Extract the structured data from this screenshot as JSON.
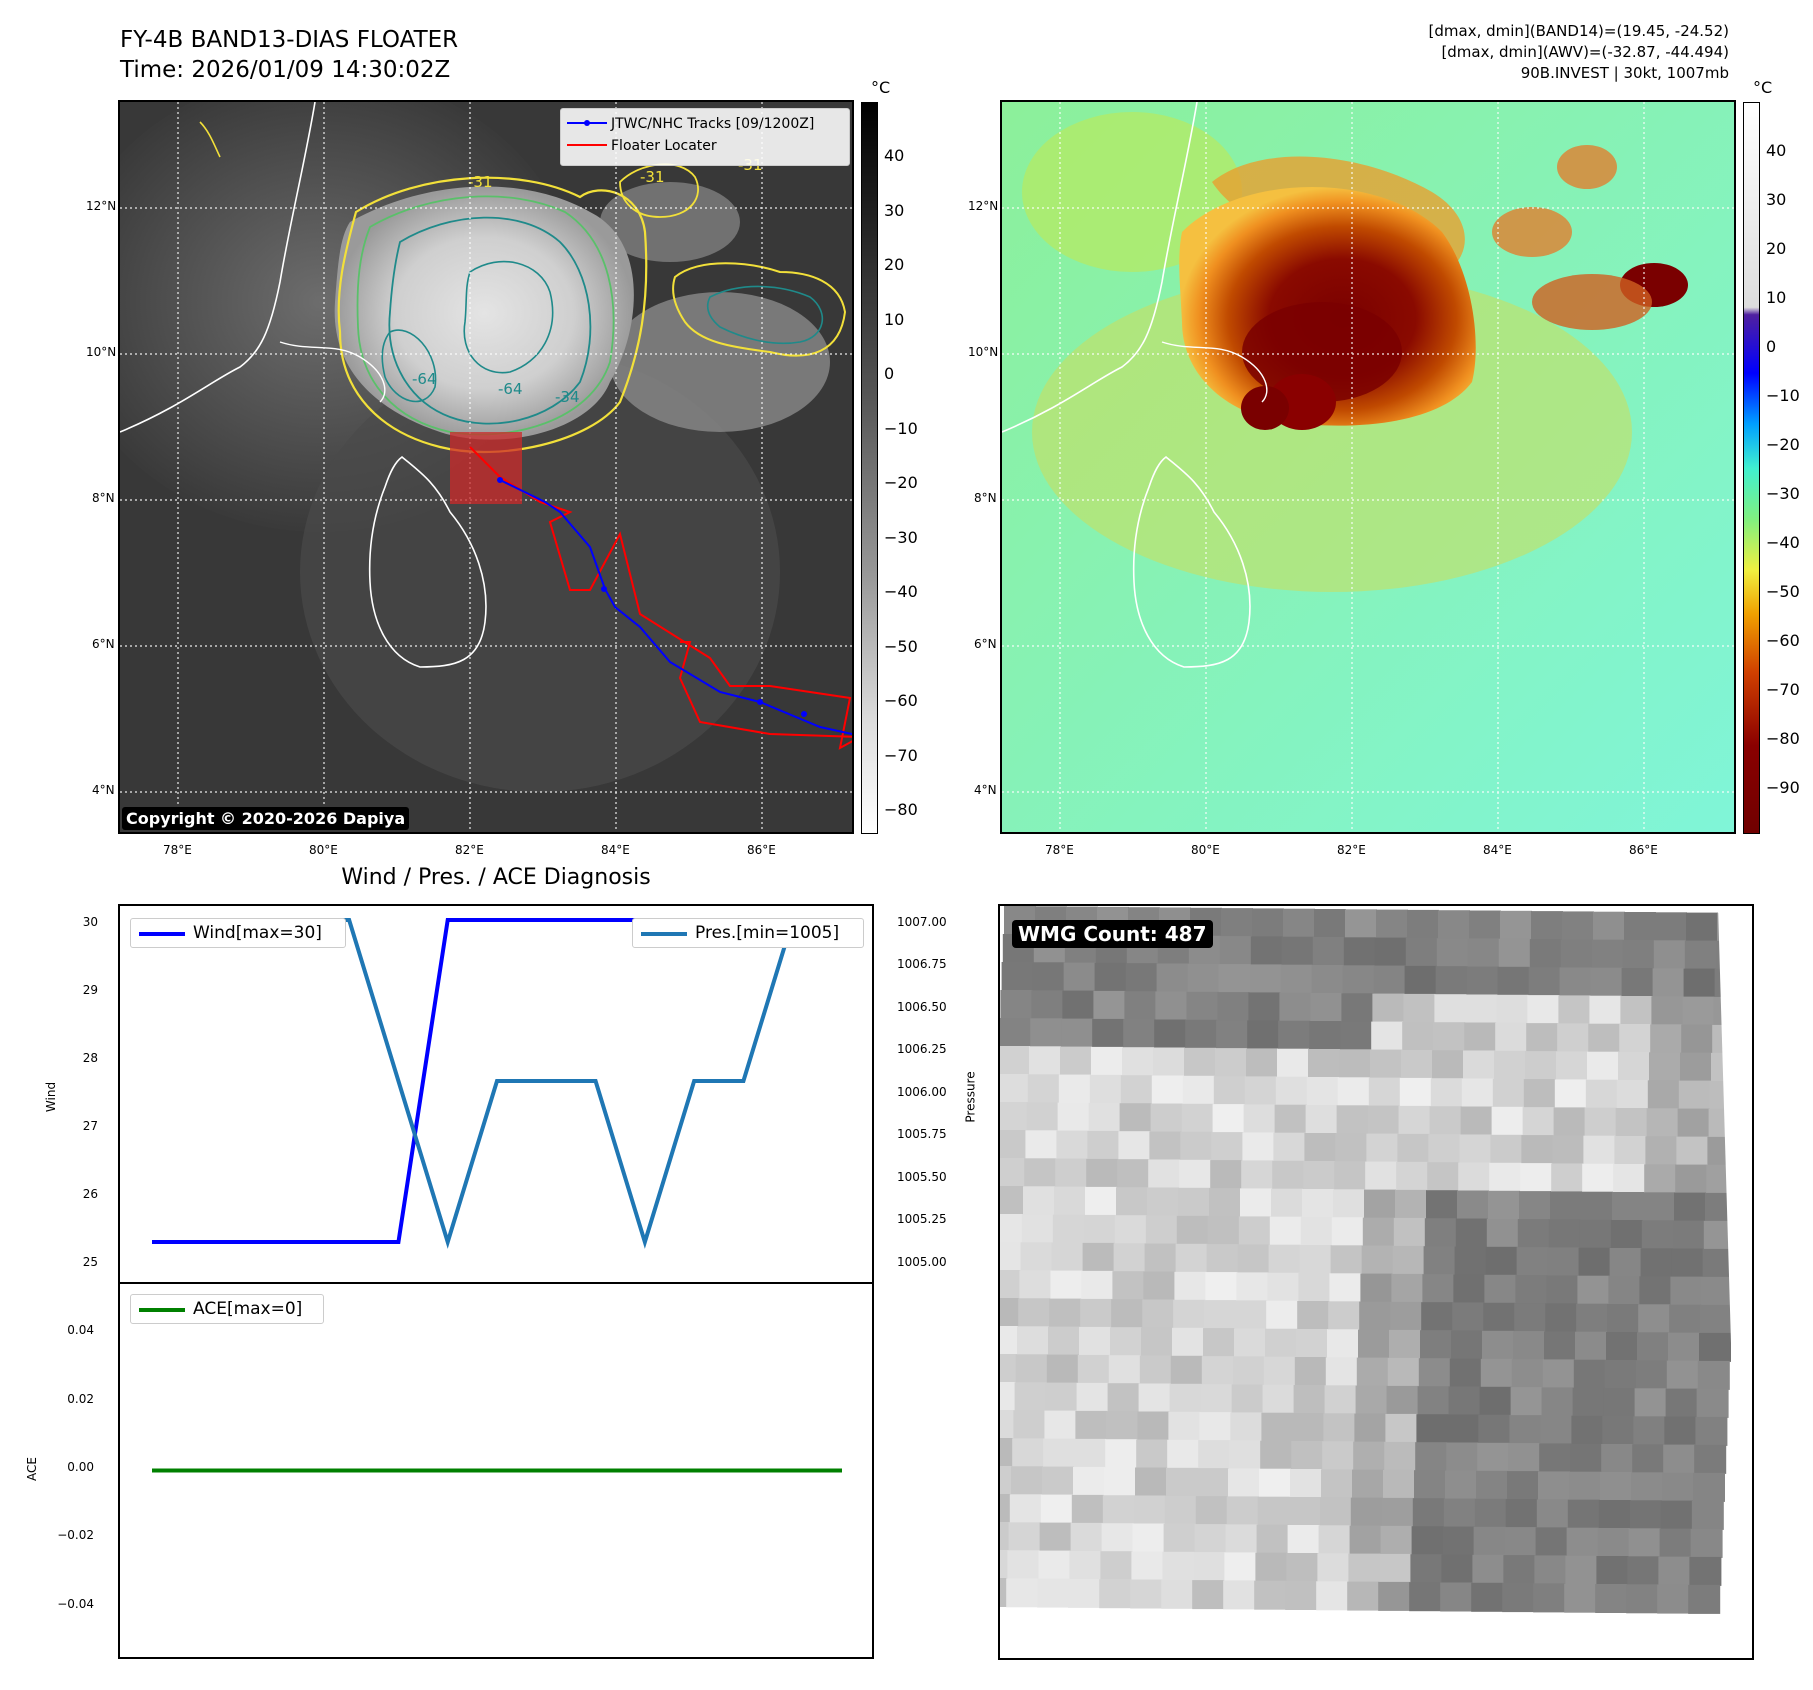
{
  "header": {
    "title_line1": "FY-4B BAND13-DIAS FLOATER",
    "title_line2": "Time: 2026/01/09 14:30:02Z",
    "info_line1": "[dmax, dmin](BAND14)=(19.45, -24.52)",
    "info_line2": "[dmax, dmin](AWV)=(-32.87, -44.494)",
    "info_line3": "90B.INVEST | 30kt, 1007mb"
  },
  "map": {
    "lon_labels": [
      "78°E",
      "80°E",
      "82°E",
      "84°E",
      "86°E"
    ],
    "lat_labels": [
      "12°N",
      "10°N",
      "8°N",
      "6°N",
      "4°N"
    ],
    "copyright": "Copyright © 2020-2026 Dapiya",
    "legend_track": "JTWC/NHC Tracks [09/1200Z]",
    "legend_floater": "Floater Locater",
    "contour_labels": [
      "-31",
      "-64",
      "-64",
      "-34",
      "-31",
      "-31"
    ],
    "colors": {
      "track": "#0000ff",
      "floater": "#ff0000",
      "contour_outer": "#f2e03a",
      "contour_inner": "#1f8a8a"
    }
  },
  "colorbar_left": {
    "unit": "°C",
    "ticks": [
      "40",
      "30",
      "20",
      "10",
      "0",
      "−10",
      "−20",
      "−30",
      "−40",
      "−50",
      "−60",
      "−70",
      "−80"
    ]
  },
  "colorbar_right": {
    "unit": "°C",
    "ticks": [
      "40",
      "30",
      "20",
      "10",
      "0",
      "−10",
      "−20",
      "−30",
      "−40",
      "−50",
      "−60",
      "−70",
      "−80",
      "−90"
    ]
  },
  "diagnosis": {
    "title": "Wind / Pres. / ACE Diagnosis",
    "wind_axis_label": "Wind",
    "pressure_axis_label": "Pressure",
    "ace_axis_label": "ACE",
    "wind_legend": "Wind[max=30]",
    "pres_legend": "Pres.[min=1005]",
    "ace_legend": "ACE[max=0]",
    "wind_ticks": [
      "30",
      "29",
      "28",
      "27",
      "26",
      "25"
    ],
    "pres_ticks": [
      "1007.00",
      "1006.75",
      "1006.50",
      "1006.25",
      "1006.00",
      "1005.75",
      "1005.50",
      "1005.25",
      "1005.00"
    ],
    "ace_ticks": [
      "0.04",
      "0.02",
      "0.00",
      "−0.02",
      "−0.04"
    ],
    "colors": {
      "wind": "#0000ff",
      "pressure": "#1f77b4",
      "ace": "#008000"
    }
  },
  "wmg": {
    "label": "WMG Count: 487"
  },
  "chart_data": [
    {
      "type": "line",
      "title": "Wind / Pres. / ACE Diagnosis",
      "ylabel": "Wind",
      "ylim": [
        25,
        30
      ],
      "series": [
        {
          "name": "Wind[max=30]",
          "x": [
            0,
            1,
            2,
            3,
            4,
            5,
            6,
            7,
            8,
            9,
            10,
            11,
            12,
            13,
            14
          ],
          "values": [
            25,
            25,
            25,
            25,
            25,
            25,
            30,
            30,
            30,
            30,
            30,
            30,
            30,
            30,
            30
          ]
        }
      ]
    },
    {
      "type": "line",
      "ylabel": "Pressure",
      "ylim": [
        1005,
        1007
      ],
      "series": [
        {
          "name": "Pres.[min=1005]",
          "x": [
            0,
            1,
            2,
            3,
            4,
            5,
            6,
            7,
            8,
            9,
            10,
            11,
            12,
            13,
            14
          ],
          "values": [
            1007,
            1007,
            1007,
            1007,
            1007,
            1006,
            1005,
            1006,
            1006,
            1006,
            1005,
            1006,
            1006,
            1007,
            1007
          ]
        }
      ]
    },
    {
      "type": "line",
      "ylabel": "ACE",
      "ylim": [
        -0.05,
        0.05
      ],
      "series": [
        {
          "name": "ACE[max=0]",
          "x": [
            0,
            1,
            2,
            3,
            4,
            5,
            6,
            7,
            8,
            9,
            10,
            11,
            12,
            13,
            14
          ],
          "values": [
            0,
            0,
            0,
            0,
            0,
            0,
            0,
            0,
            0,
            0,
            0,
            0,
            0,
            0,
            0
          ]
        }
      ]
    }
  ]
}
